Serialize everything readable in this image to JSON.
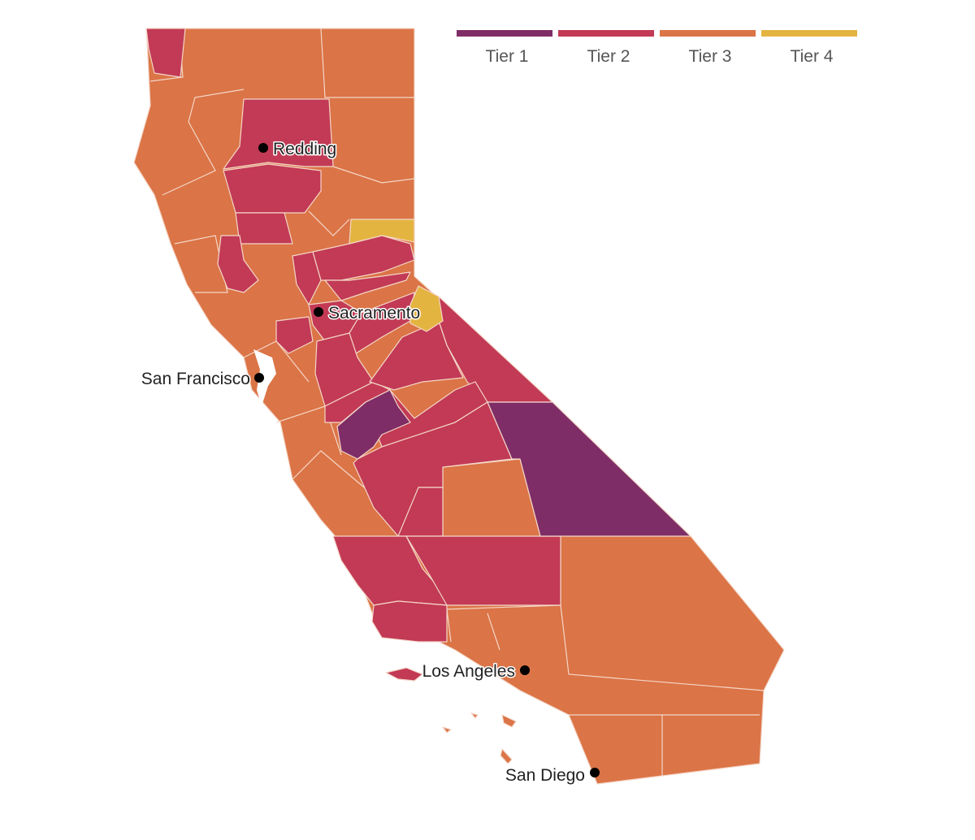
{
  "colors": {
    "tier1": "#7f2d66",
    "tier2": "#c23a55",
    "tier3": "#db7446",
    "tier4": "#e4b441"
  },
  "legend": [
    {
      "label": "Tier 1",
      "color": "#7f2d66"
    },
    {
      "label": "Tier 2",
      "color": "#c23a55"
    },
    {
      "label": "Tier 3",
      "color": "#db7446"
    },
    {
      "label": "Tier 4",
      "color": "#e4b441"
    }
  ],
  "cities": [
    {
      "name": "Redding"
    },
    {
      "name": "Sacramento"
    },
    {
      "name": "San Francisco"
    },
    {
      "name": "Los Angeles"
    },
    {
      "name": "San Diego"
    }
  ]
}
